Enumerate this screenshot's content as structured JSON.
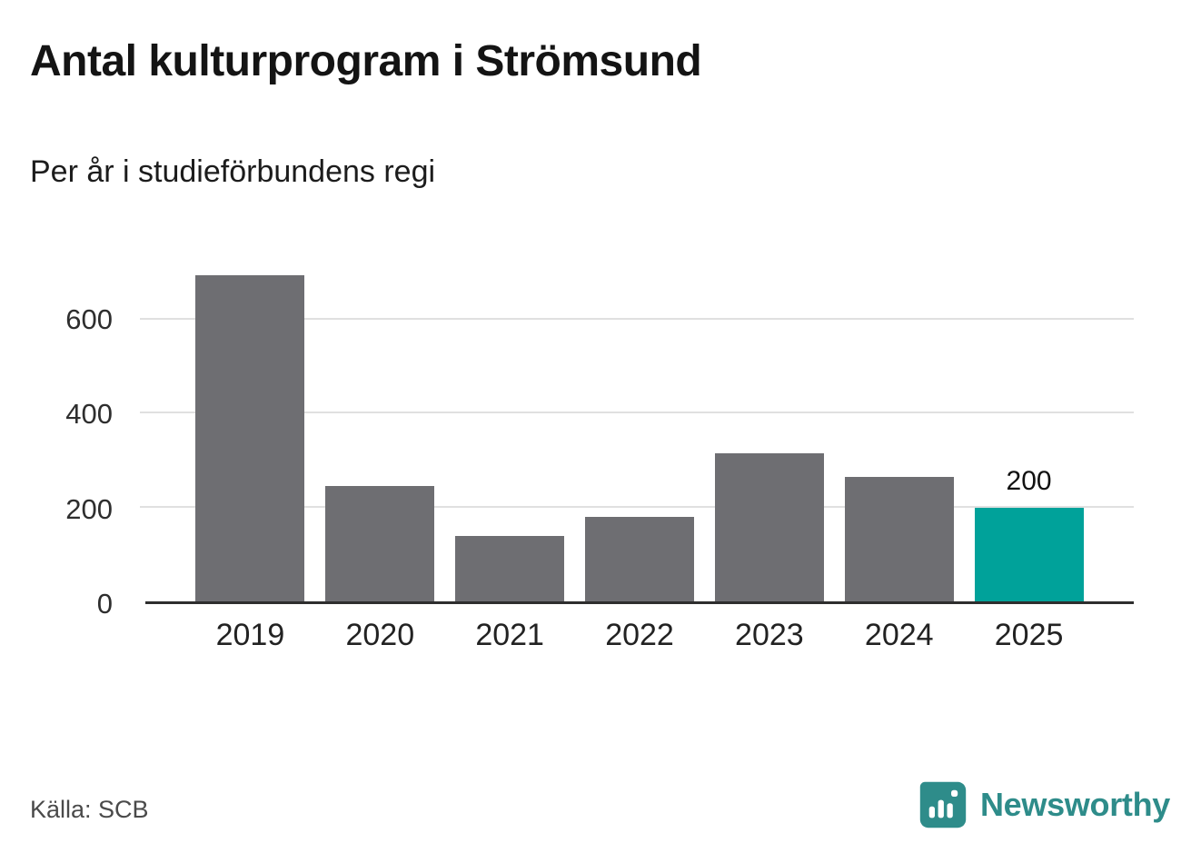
{
  "title": "Antal kulturprogram i Strömsund",
  "subtitle": "Per år i studieförbundens regi",
  "source": "Källa: SCB",
  "brand": {
    "name": "Newsworthy",
    "color": "#2e8c8a"
  },
  "chart_data": {
    "type": "bar",
    "title": "Antal kulturprogram i Strömsund",
    "subtitle": "Per år i studieförbundens regi",
    "categories": [
      "2019",
      "2020",
      "2021",
      "2022",
      "2023",
      "2024",
      "2025"
    ],
    "values": [
      695,
      245,
      140,
      180,
      315,
      265,
      200
    ],
    "value_labels": {
      "6": "200"
    },
    "highlight_index": 6,
    "bar_color": "#6e6e72",
    "highlight_color": "#00a29a",
    "yticks": [
      0,
      200,
      400,
      600
    ],
    "ylim": [
      0,
      700
    ],
    "xlabel": "",
    "ylabel": "",
    "grid": true,
    "legend": "none",
    "source": "Källa: SCB"
  }
}
